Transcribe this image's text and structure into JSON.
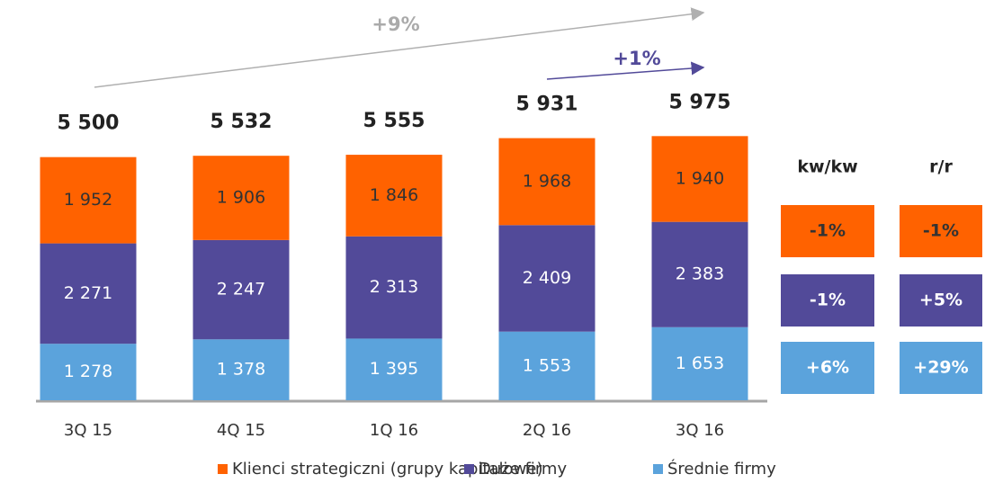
{
  "chart_data": {
    "type": "stacked_bar",
    "categories": [
      "3Q 15",
      "4Q 15",
      "1Q 16",
      "2Q 16",
      "3Q 16"
    ],
    "series": [
      {
        "name": "Klienci strategiczni (grupy kapitałowe)",
        "color": "#ff6200",
        "values": [
          1952,
          1906,
          1846,
          1968,
          1940
        ],
        "value_labels": [
          "1 952",
          "1 906",
          "1 846",
          "1 968",
          "1 940"
        ]
      },
      {
        "name": "Duże firmy",
        "color": "#524a99",
        "values": [
          2271,
          2247,
          2313,
          2409,
          2383
        ],
        "value_labels": [
          "2 271",
          "2 247",
          "2 313",
          "2 409",
          "2 383"
        ]
      },
      {
        "name": "Średnie firmy",
        "color": "#5ba3dc",
        "values": [
          1278,
          1378,
          1395,
          1553,
          1653
        ],
        "value_labels": [
          "1 278",
          "1 378",
          "1 395",
          "1 553",
          "1 653"
        ]
      }
    ],
    "totals": [
      5500,
      5532,
      5555,
      5931,
      5975
    ],
    "total_labels": [
      "5 500",
      "5 532",
      "5 555",
      "5 931",
      "5 975"
    ],
    "ylim": [
      0,
      7000
    ],
    "annotations": [
      "+9%",
      "+1%"
    ],
    "changes": {
      "headers": [
        "kw/kw",
        "r/r"
      ],
      "rows": [
        [
          "-1%",
          "-1%"
        ],
        [
          "-1%",
          "+5%"
        ],
        [
          "+6%",
          "+29%"
        ]
      ]
    }
  }
}
